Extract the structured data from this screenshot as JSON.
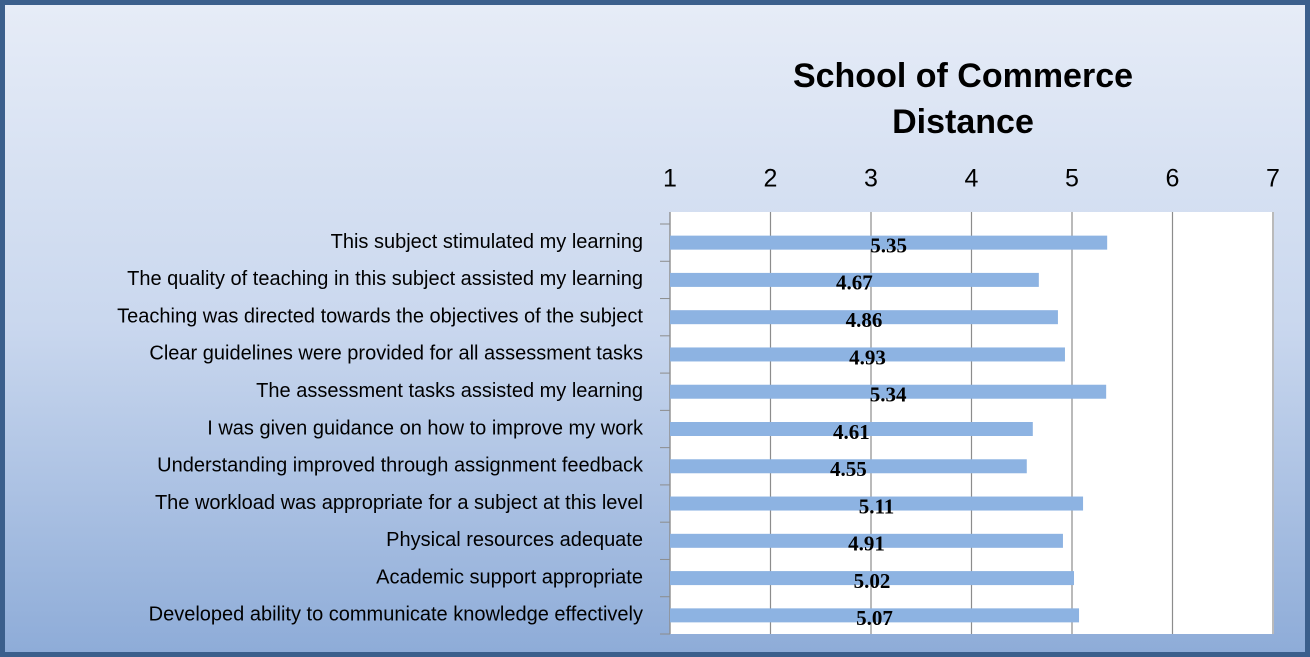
{
  "chart_data": {
    "type": "bar",
    "orientation": "horizontal",
    "title": "School of Commerce Distance",
    "categories": [
      "This subject stimulated my learning",
      "The quality of teaching in this subject assisted my learning",
      "Teaching was directed towards the objectives of the subject",
      "Clear guidelines were provided for all assessment tasks",
      "The assessment tasks assisted my learning",
      "I was given guidance on how to improve my work",
      "Understanding improved through assignment feedback",
      "The workload was appropriate for a subject at this level",
      "Physical resources adequate",
      "Academic support appropriate",
      "Developed ability to communicate knowledge effectively"
    ],
    "values": [
      5.35,
      4.67,
      4.86,
      4.93,
      5.34,
      4.61,
      4.55,
      5.11,
      4.91,
      5.02,
      5.07
    ],
    "color": "#8db3e2",
    "xlim": [
      1,
      7
    ],
    "xticks": [
      1,
      2,
      3,
      4,
      5,
      6,
      7
    ],
    "grid": true
  }
}
